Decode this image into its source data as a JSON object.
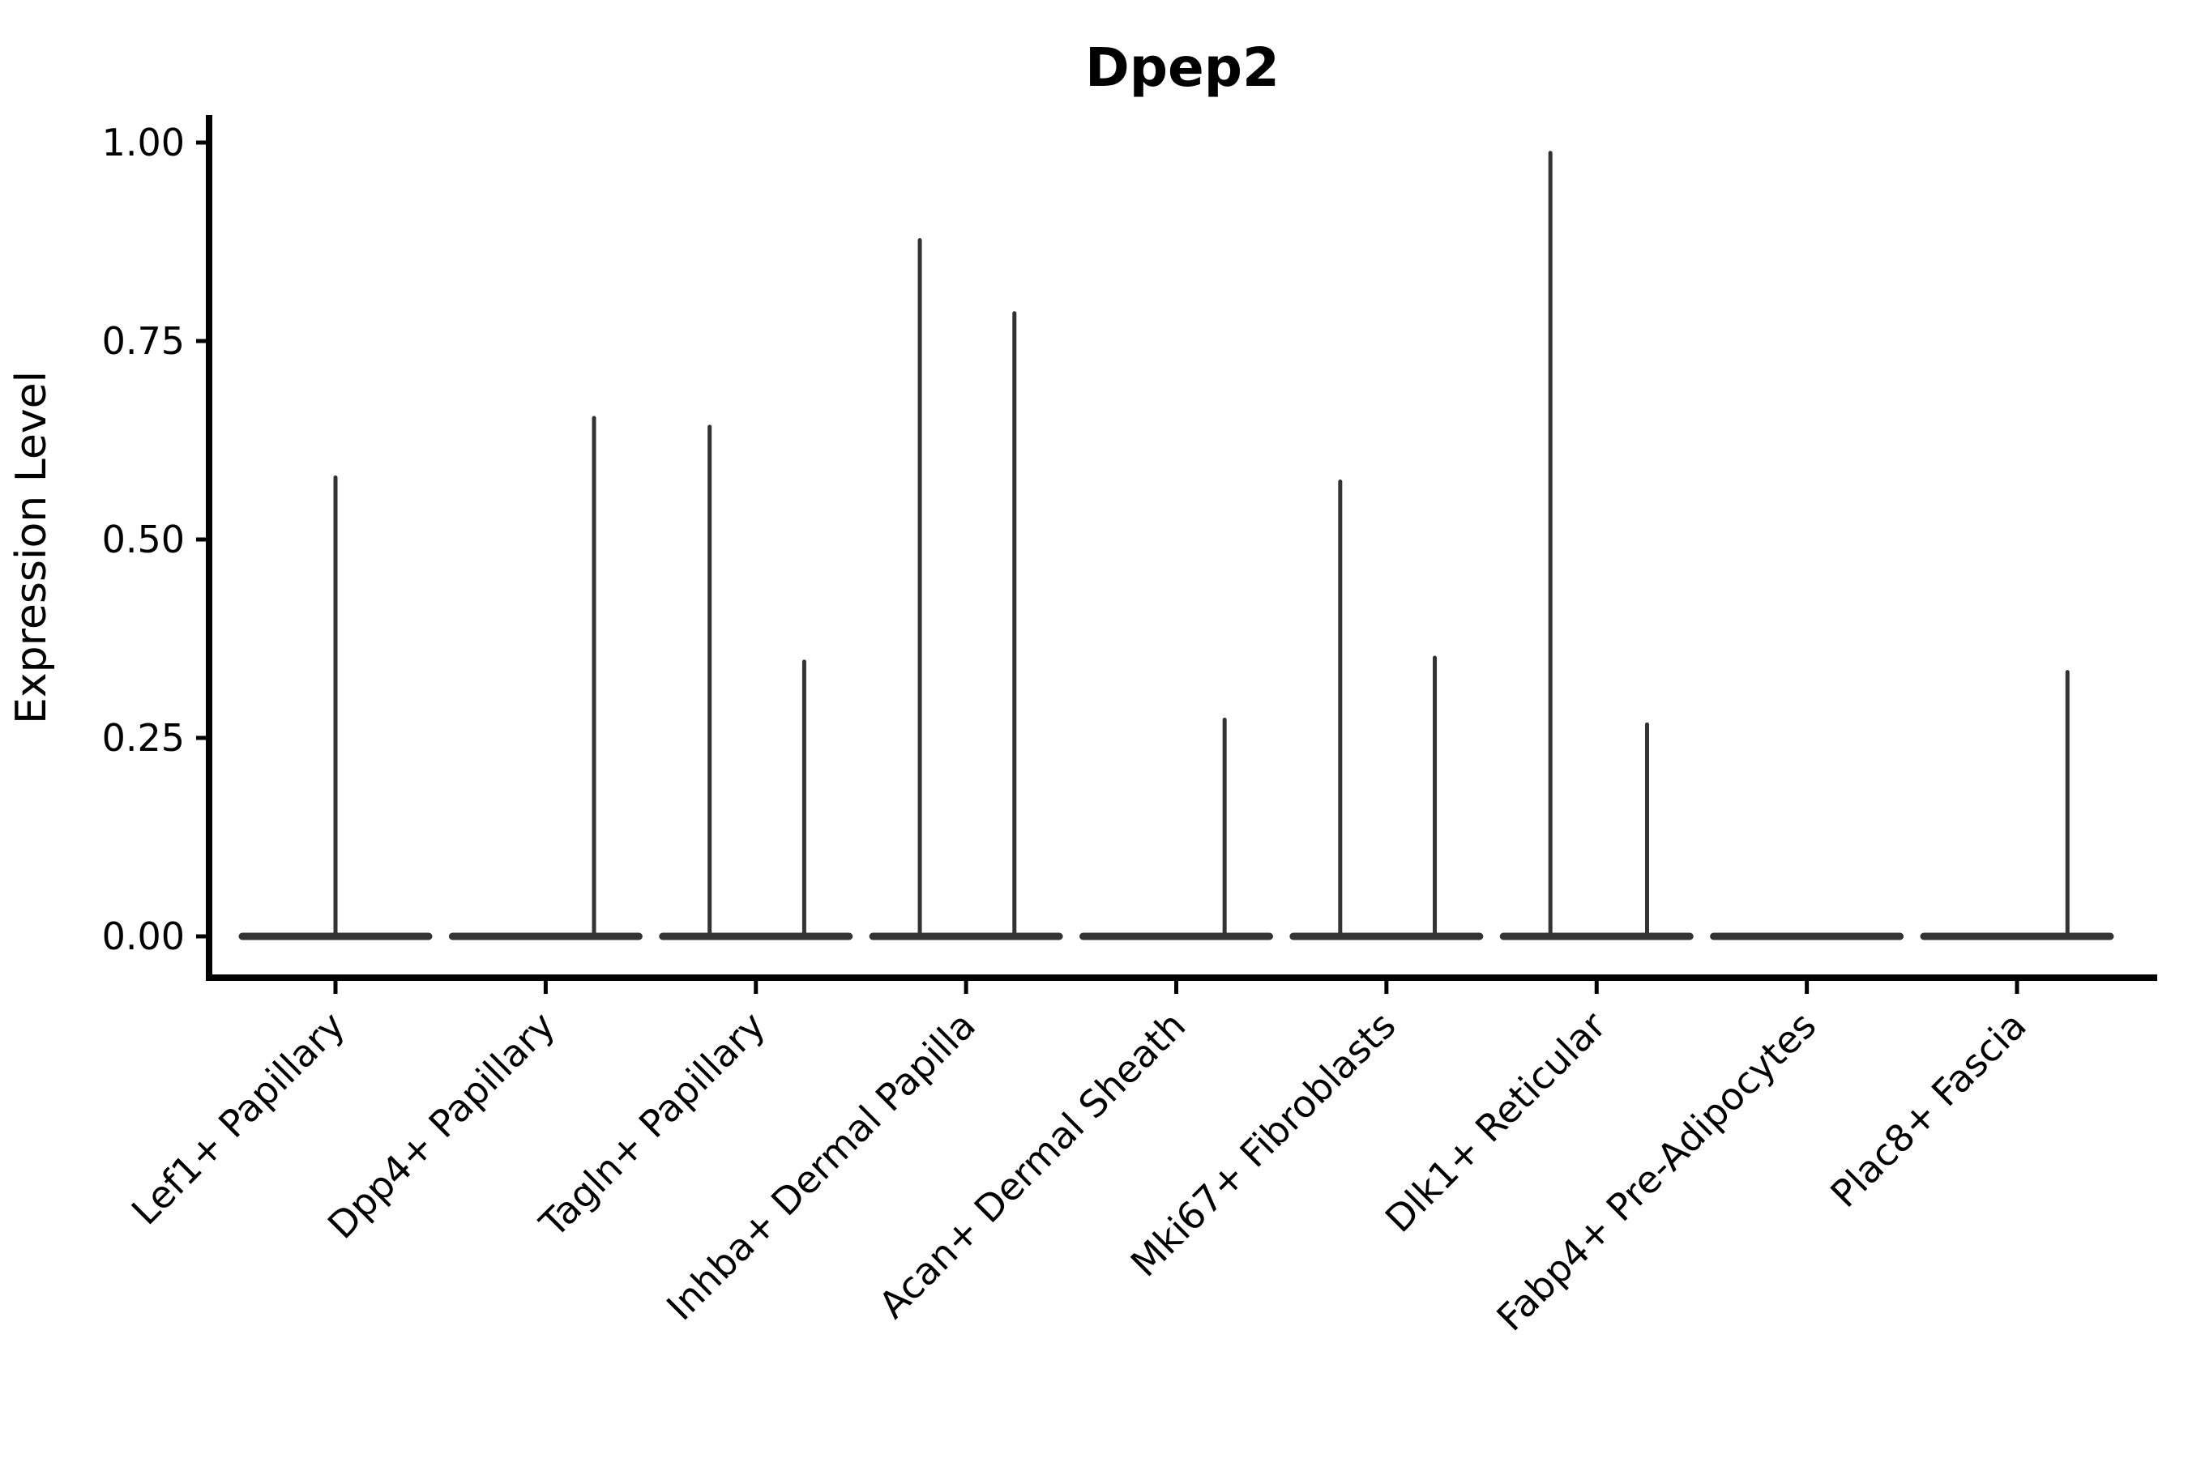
{
  "chart_data": {
    "type": "violin",
    "title": "Dpep2",
    "xlabel": "",
    "ylabel": "Expression Level",
    "ylim": [
      0,
      1.0
    ],
    "ytick_values": [
      0,
      0.25,
      0.5,
      0.75,
      1.0
    ],
    "ytick_labels": [
      "0.00",
      "0.25",
      "0.50",
      "0.75",
      "1.00"
    ],
    "grid": false,
    "legend": "none",
    "background": "#ffffff",
    "colors": {
      "violin": "#333333",
      "axis": "#000000",
      "text": "#000000"
    },
    "categories": [
      "Lef1+ Papillary",
      "Dpp4+ Papillary",
      "Tagln+ Papillary",
      "Inhba+ Dermal Papilla",
      "Acan+ Dermal Sheath",
      "Mki67+ Fibroblasts",
      "Dlk1+ Reticular",
      "Fabp4+ Pre-Adipocytes",
      "Plac8+ Fascia"
    ],
    "violins": [
      {
        "category": "Lef1+ Papillary",
        "baseline_value": 0,
        "spikes": [
          {
            "dodge": 0.0,
            "max": 0.578
          }
        ]
      },
      {
        "category": "Dpp4+ Papillary",
        "baseline_value": 0,
        "spikes": [
          {
            "dodge": 0.23,
            "max": 0.653
          }
        ]
      },
      {
        "category": "Tagln+ Papillary",
        "baseline_value": 0,
        "spikes": [
          {
            "dodge": -0.22,
            "max": 0.642
          },
          {
            "dodge": 0.23,
            "max": 0.346
          }
        ]
      },
      {
        "category": "Inhba+ Dermal Papilla",
        "baseline_value": 0,
        "spikes": [
          {
            "dodge": -0.22,
            "max": 0.877
          },
          {
            "dodge": 0.23,
            "max": 0.785
          }
        ]
      },
      {
        "category": "Acan+ Dermal Sheath",
        "baseline_value": 0,
        "spikes": [
          {
            "dodge": 0.23,
            "max": 0.273
          }
        ]
      },
      {
        "category": "Mki67+ Fibroblasts",
        "baseline_value": 0,
        "spikes": [
          {
            "dodge": -0.22,
            "max": 0.573
          },
          {
            "dodge": 0.23,
            "max": 0.351
          }
        ]
      },
      {
        "category": "Dlk1+ Reticular",
        "baseline_value": 0,
        "spikes": [
          {
            "dodge": -0.22,
            "max": 0.987
          },
          {
            "dodge": 0.24,
            "max": 0.267
          }
        ]
      },
      {
        "category": "Fabp4+ Pre-Adipocytes",
        "baseline_value": 0,
        "spikes": []
      },
      {
        "category": "Plac8+ Fascia",
        "baseline_value": 0,
        "spikes": [
          {
            "dodge": 0.24,
            "max": 0.333
          }
        ]
      }
    ]
  }
}
